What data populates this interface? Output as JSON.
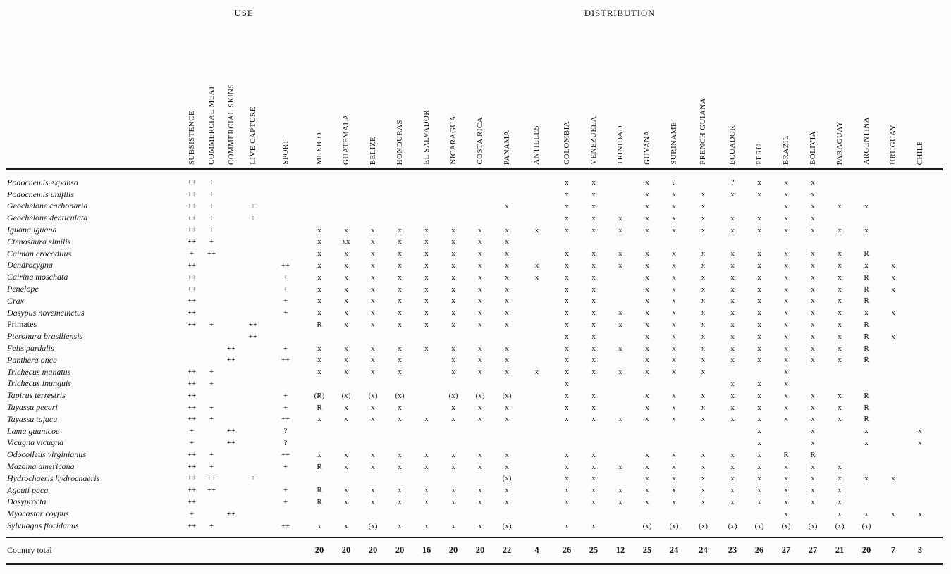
{
  "groups": {
    "use": "USE",
    "distribution": "DISTRIBUTION"
  },
  "columns": {
    "use": [
      "SUBSISTENCE",
      "COMMERCIAL MEAT",
      "COMMERCIAL SKINS",
      "LIVE CAPTURE",
      "SPORT"
    ],
    "distribution": [
      "MEXICO",
      "GUATEMALA",
      "BELIZE",
      "HONDURAS",
      "EL SALVADOR",
      "NICARAGUA",
      "COSTA RICA",
      "PANAMA",
      "ANTILLES",
      "COLOMBIA",
      "VENEZUELA",
      "TRINIDAD",
      "GUYANA",
      "SURINAME",
      "FRENCH GUIANA",
      "ECUADOR",
      "PERU",
      "BRAZIL",
      "BOLIVIA",
      "PARAGUAY",
      "ARGENTINA",
      "URUGUAY",
      "CHILE"
    ]
  },
  "rows": [
    {
      "species": "Podocnemis expansa",
      "use": [
        "++",
        "+",
        "",
        "",
        ""
      ],
      "dist": [
        "",
        "",
        "",
        "",
        "",
        "",
        "",
        "",
        "",
        "x",
        "x",
        "",
        "x",
        "?",
        "",
        "?",
        "x",
        "x",
        "x",
        "",
        "",
        "",
        ""
      ]
    },
    {
      "species": "Podocnemis unifilis",
      "use": [
        "++",
        "+",
        "",
        "",
        ""
      ],
      "dist": [
        "",
        "",
        "",
        "",
        "",
        "",
        "",
        "",
        "",
        "x",
        "x",
        "",
        "x",
        "x",
        "x",
        "x",
        "x",
        "x",
        "x",
        "",
        "",
        "",
        ""
      ]
    },
    {
      "species": "Geochelone carbonaria",
      "use": [
        "++",
        "+",
        "",
        "+",
        ""
      ],
      "dist": [
        "",
        "",
        "",
        "",
        "",
        "",
        "",
        "x",
        "",
        "x",
        "x",
        "",
        "x",
        "x",
        "x",
        "",
        "",
        "x",
        "x",
        "x",
        "x",
        "",
        ""
      ]
    },
    {
      "species": "Geochelone denticulata",
      "use": [
        "++",
        "+",
        "",
        "+",
        ""
      ],
      "dist": [
        "",
        "",
        "",
        "",
        "",
        "",
        "",
        "",
        "",
        "x",
        "x",
        "x",
        "x",
        "x",
        "x",
        "x",
        "x",
        "x",
        "x",
        "",
        "",
        "",
        ""
      ]
    },
    {
      "species": "Iguana iguana",
      "use": [
        "++",
        "+",
        "",
        "",
        ""
      ],
      "dist": [
        "x",
        "x",
        "x",
        "x",
        "x",
        "x",
        "x",
        "x",
        "x",
        "x",
        "x",
        "x",
        "x",
        "x",
        "x",
        "x",
        "x",
        "x",
        "x",
        "x",
        "x",
        "",
        ""
      ]
    },
    {
      "species": "Ctenosaura similis",
      "use": [
        "++",
        "+",
        "",
        "",
        ""
      ],
      "dist": [
        "x",
        "xx",
        "x",
        "x",
        "x",
        "x",
        "x",
        "x",
        "",
        "",
        "",
        "",
        "",
        "",
        "",
        "",
        "",
        "",
        "",
        "",
        "",
        "",
        ""
      ]
    },
    {
      "species": "Caiman crocodilus",
      "use": [
        "+",
        "++",
        "",
        "",
        ""
      ],
      "dist": [
        "x",
        "x",
        "x",
        "x",
        "x",
        "x",
        "x",
        "x",
        "",
        "x",
        "x",
        "x",
        "x",
        "x",
        "x",
        "x",
        "x",
        "x",
        "x",
        "x",
        "R",
        "",
        ""
      ]
    },
    {
      "species": "Dendrocygna",
      "use": [
        "++",
        "",
        "",
        "",
        "++"
      ],
      "dist": [
        "x",
        "x",
        "x",
        "x",
        "x",
        "x",
        "x",
        "x",
        "x",
        "x",
        "x",
        "x",
        "x",
        "x",
        "x",
        "x",
        "x",
        "x",
        "x",
        "x",
        "x",
        "x",
        ""
      ]
    },
    {
      "species": "Cairina moschata",
      "use": [
        "++",
        "",
        "",
        "",
        "+"
      ],
      "dist": [
        "x",
        "x",
        "x",
        "x",
        "x",
        "x",
        "x",
        "x",
        "x",
        "x",
        "x",
        "",
        "x",
        "x",
        "x",
        "x",
        "x",
        "x",
        "x",
        "x",
        "R",
        "x",
        ""
      ]
    },
    {
      "species": "Penelope",
      "use": [
        "++",
        "",
        "",
        "",
        "+"
      ],
      "dist": [
        "x",
        "x",
        "x",
        "x",
        "x",
        "x",
        "x",
        "x",
        "",
        "x",
        "x",
        "",
        "x",
        "x",
        "x",
        "x",
        "x",
        "x",
        "x",
        "x",
        "R",
        "x",
        ""
      ]
    },
    {
      "species": "Crax",
      "use": [
        "++",
        "",
        "",
        "",
        "+"
      ],
      "dist": [
        "x",
        "x",
        "x",
        "x",
        "x",
        "x",
        "x",
        "x",
        "",
        "x",
        "x",
        "",
        "x",
        "x",
        "x",
        "x",
        "x",
        "x",
        "x",
        "x",
        "R",
        "",
        ""
      ]
    },
    {
      "species": "Dasypus novemcinctus",
      "use": [
        "++",
        "",
        "",
        "",
        "+"
      ],
      "dist": [
        "x",
        "x",
        "x",
        "x",
        "x",
        "x",
        "x",
        "x",
        "",
        "x",
        "x",
        "x",
        "x",
        "x",
        "x",
        "x",
        "x",
        "x",
        "x",
        "x",
        "x",
        "x",
        ""
      ]
    },
    {
      "species": "Primates",
      "roman": true,
      "use": [
        "++",
        "+",
        "",
        "++",
        ""
      ],
      "dist": [
        "R",
        "x",
        "x",
        "x",
        "x",
        "x",
        "x",
        "x",
        "",
        "x",
        "x",
        "x",
        "x",
        "x",
        "x",
        "x",
        "x",
        "x",
        "x",
        "x",
        "R",
        "",
        ""
      ]
    },
    {
      "species": "Pteronura brasiliensis",
      "use": [
        "",
        "",
        "",
        "++",
        ""
      ],
      "dist": [
        "",
        "",
        "",
        "",
        "",
        "",
        "",
        "",
        "",
        "x",
        "x",
        "",
        "x",
        "x",
        "x",
        "x",
        "x",
        "x",
        "x",
        "x",
        "R",
        "x",
        ""
      ]
    },
    {
      "species": "Felis pardalis",
      "use": [
        "",
        "",
        "++",
        "",
        "+"
      ],
      "dist": [
        "x",
        "x",
        "x",
        "x",
        "x",
        "x",
        "x",
        "x",
        "",
        "x",
        "x",
        "x",
        "x",
        "x",
        "x",
        "x",
        "x",
        "x",
        "x",
        "x",
        "R",
        "",
        ""
      ]
    },
    {
      "species": "Panthera onca",
      "use": [
        "",
        "",
        "++",
        "",
        "++"
      ],
      "dist": [
        "x",
        "x",
        "x",
        "x",
        "",
        "x",
        "x",
        "x",
        "",
        "x",
        "x",
        "",
        "x",
        "x",
        "x",
        "x",
        "x",
        "x",
        "x",
        "x",
        "R",
        "",
        ""
      ]
    },
    {
      "species": "Trichecus manatus",
      "use": [
        "++",
        "+",
        "",
        "",
        ""
      ],
      "dist": [
        "x",
        "x",
        "x",
        "x",
        "",
        "x",
        "x",
        "x",
        "x",
        "x",
        "x",
        "x",
        "x",
        "x",
        "x",
        "",
        "",
        "x",
        "",
        "",
        "",
        "",
        ""
      ]
    },
    {
      "species": "Trichecus inunguis",
      "use": [
        "++",
        "+",
        "",
        "",
        ""
      ],
      "dist": [
        "",
        "",
        "",
        "",
        "",
        "",
        "",
        "",
        "",
        "x",
        "",
        "",
        "",
        "",
        "",
        "x",
        "x",
        "x",
        "",
        "",
        "",
        "",
        ""
      ]
    },
    {
      "species": "Tapirus terrestris",
      "use": [
        "++",
        "",
        "",
        "",
        "+"
      ],
      "dist": [
        "(R)",
        "(x)",
        "(x)",
        "(x)",
        "",
        "(x)",
        "(x)",
        "(x)",
        "",
        "x",
        "x",
        "",
        "x",
        "x",
        "x",
        "x",
        "x",
        "x",
        "x",
        "x",
        "R",
        "",
        ""
      ]
    },
    {
      "species": "Tayassu pecari",
      "use": [
        "++",
        "+",
        "",
        "",
        "+"
      ],
      "dist": [
        "R",
        "x",
        "x",
        "x",
        "",
        "x",
        "x",
        "x",
        "",
        "x",
        "x",
        "",
        "x",
        "x",
        "x",
        "x",
        "x",
        "x",
        "x",
        "x",
        "R",
        "",
        ""
      ]
    },
    {
      "species": "Tayassu tajacu",
      "use": [
        "++",
        "+",
        "",
        "",
        "++"
      ],
      "dist": [
        "x",
        "x",
        "x",
        "x",
        "x",
        "x",
        "x",
        "x",
        "",
        "x",
        "x",
        "x",
        "x",
        "x",
        "x",
        "x",
        "x",
        "x",
        "x",
        "x",
        "R",
        "",
        ""
      ]
    },
    {
      "species": "Lama guanicoe",
      "use": [
        "+",
        "",
        "++",
        "",
        "?"
      ],
      "dist": [
        "",
        "",
        "",
        "",
        "",
        "",
        "",
        "",
        "",
        "",
        "",
        "",
        "",
        "",
        "",
        "",
        "x",
        "",
        "x",
        "",
        "x",
        "",
        "x"
      ]
    },
    {
      "species": "Vicugna vicugna",
      "use": [
        "+",
        "",
        "++",
        "",
        "?"
      ],
      "dist": [
        "",
        "",
        "",
        "",
        "",
        "",
        "",
        "",
        "",
        "",
        "",
        "",
        "",
        "",
        "",
        "",
        "x",
        "",
        "x",
        "",
        "x",
        "",
        "x"
      ]
    },
    {
      "species": "Odocoileus virginianus",
      "use": [
        "++",
        "+",
        "",
        "",
        "++"
      ],
      "dist": [
        "x",
        "x",
        "x",
        "x",
        "x",
        "x",
        "x",
        "x",
        "",
        "x",
        "x",
        "",
        "x",
        "x",
        "x",
        "x",
        "x",
        "R",
        "R",
        "",
        "",
        "",
        ""
      ]
    },
    {
      "species": "Mazama americana",
      "use": [
        "++",
        "+",
        "",
        "",
        "+"
      ],
      "dist": [
        "R",
        "x",
        "x",
        "x",
        "x",
        "x",
        "x",
        "x",
        "",
        "x",
        "x",
        "x",
        "x",
        "x",
        "x",
        "x",
        "x",
        "x",
        "x",
        "x",
        "",
        "",
        ""
      ]
    },
    {
      "species": "Hydrochaeris hydrochaeris",
      "use": [
        "++",
        "++",
        "",
        "+",
        ""
      ],
      "dist": [
        "",
        "",
        "",
        "",
        "",
        "",
        "",
        "(x)",
        "",
        "x",
        "x",
        "",
        "x",
        "x",
        "x",
        "x",
        "x",
        "x",
        "x",
        "x",
        "x",
        "x",
        ""
      ]
    },
    {
      "species": "Agouti paca",
      "use": [
        "++",
        "++",
        "",
        "",
        "+"
      ],
      "dist": [
        "R",
        "x",
        "x",
        "x",
        "x",
        "x",
        "x",
        "x",
        "",
        "x",
        "x",
        "x",
        "x",
        "x",
        "x",
        "x",
        "x",
        "x",
        "x",
        "x",
        "",
        "",
        ""
      ]
    },
    {
      "species": "Dasyprocta",
      "use": [
        "++",
        "",
        "",
        "",
        "+"
      ],
      "dist": [
        "R",
        "x",
        "x",
        "x",
        "x",
        "x",
        "x",
        "x",
        "",
        "x",
        "x",
        "x",
        "x",
        "x",
        "x",
        "x",
        "x",
        "x",
        "x",
        "x",
        "",
        "",
        ""
      ]
    },
    {
      "species": "Myocastor coypus",
      "use": [
        "+",
        "",
        "++",
        "",
        ""
      ],
      "dist": [
        "",
        "",
        "",
        "",
        "",
        "",
        "",
        "",
        "",
        "",
        "",
        "",
        "",
        "",
        "",
        "",
        "",
        "x",
        "",
        "x",
        "x",
        "x",
        "x"
      ]
    },
    {
      "species": "Sylvilagus floridanus",
      "use": [
        "++",
        "+",
        "",
        "",
        "++"
      ],
      "dist": [
        "x",
        "x",
        "(x)",
        "x",
        "x",
        "x",
        "x",
        "(x)",
        "",
        "x",
        "x",
        "",
        "(x)",
        "(x)",
        "(x)",
        "(x)",
        "(x)",
        "(x)",
        "(x)",
        "(x)",
        "(x)",
        "",
        ""
      ]
    }
  ],
  "footer": {
    "label": "Country total",
    "values": [
      "20",
      "20",
      "20",
      "20",
      "16",
      "20",
      "20",
      "22",
      "4",
      "26",
      "25",
      "12",
      "25",
      "24",
      "24",
      "23",
      "26",
      "27",
      "27",
      "21",
      "20",
      "7",
      "3"
    ]
  }
}
